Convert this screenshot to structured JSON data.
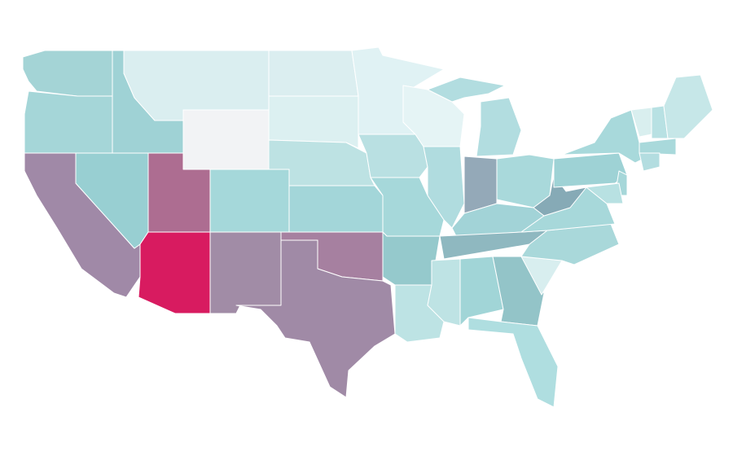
{
  "map": {
    "fills": [
      "#a4d4d6",
      "#a5d6d8",
      "#a089a7",
      "#98cfd2",
      "#9fd2d5",
      "#daeef0",
      "#f2f3f5",
      "#ad6d91",
      "#d81b60",
      "#a5d8da",
      "#a18ca6",
      "#dbeef0",
      "#dcf0f1",
      "#bde2e3",
      "#a3d6d9",
      "#a680a0",
      "#a08aa6",
      "#e0f2f4",
      "#b9e0e2",
      "#a6d8da",
      "#95c9cc",
      "#bde3e4",
      "#e5f4f5",
      "#b0dcdf",
      "#b2dde0",
      "#b2dde0",
      "#94a9b8",
      "#a9d9db",
      "#a2d3d7",
      "#8fb8c0",
      "#bee3e4",
      "#a1d5d7",
      "#93c4c8",
      "#afdee0",
      "#d8eeef",
      "#a9d8da",
      "#a7d8da",
      "#86aab6",
      "#9ed2d5",
      "#a8d9db",
      "#d9efef",
      "#b8e1e3",
      "#c6e7e8",
      "#a9d9db",
      "#b3dde0",
      "#a6d7d9",
      "#b8e1e2"
    ]
  }
}
